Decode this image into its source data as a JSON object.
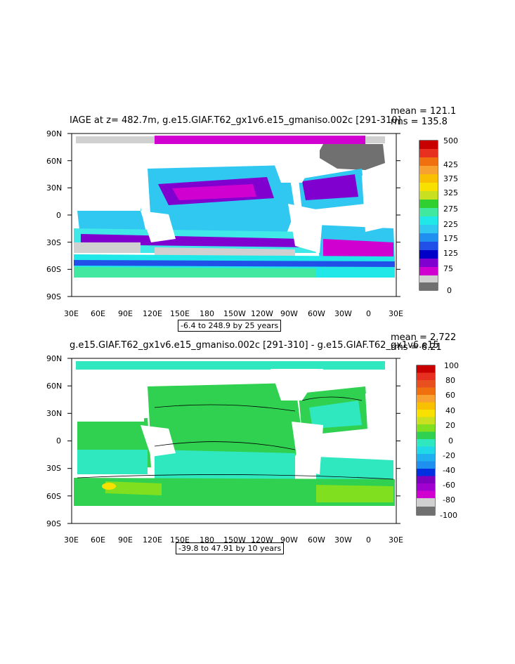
{
  "panels": [
    {
      "title": "IAGE at z= 482.7m, g.e15.GIAF.T62_gx1v6.e15_gmaniso.002c [291-310]",
      "mean": "mean = 121.1",
      "rms": "rms = 135.8",
      "range_text": "-6.4 to 248.9 by 25 years",
      "colorbar_labels": [
        "500",
        "425",
        "375",
        "325",
        "275",
        "225",
        "175",
        "125",
        "75",
        "0"
      ]
    },
    {
      "title": "g.e15.GIAF.T62_gx1v6.e15_gmaniso.002c [291-310] - g.e15.GIAF.T62_gx1v6.e15",
      "mean": "mean = 2.722",
      "rms": "rms = 6.21",
      "range_text": "-39.8 to 47.91 by 10 years",
      "colorbar_labels": [
        "100",
        "80",
        "60",
        "40",
        "20",
        "0",
        "-20",
        "-40",
        "-60",
        "-80",
        "-100"
      ]
    }
  ],
  "axes": {
    "lat_labels": [
      "90N",
      "60N",
      "30N",
      "0",
      "30S",
      "60S",
      "90S"
    ],
    "lon_labels": [
      "30E",
      "60E",
      "90E",
      "120E",
      "150E",
      "180",
      "150W",
      "120W",
      "90W",
      "60W",
      "30W",
      "0",
      "30E"
    ]
  },
  "colors": {
    "age_scale": [
      "#c80000",
      "#e83020",
      "#f07010",
      "#f8a030",
      "#f8e000",
      "#c8e020",
      "#30d030",
      "#40e8a0",
      "#20e8e8",
      "#30c8f0",
      "#2090f0",
      "#2050e8",
      "#0000c8",
      "#8000d0",
      "#d000d0",
      "#f060f0",
      "#d0d0d0",
      "#707070"
    ],
    "diff_scale": [
      "#c80000",
      "#e83020",
      "#f07010",
      "#f8a030",
      "#f8e000",
      "#80e020",
      "#30d050",
      "#30e8c0",
      "#20d8e8",
      "#2090f0",
      "#0030e0",
      "#8000c0",
      "#d000d0",
      "#d0d0d0",
      "#707070"
    ]
  }
}
